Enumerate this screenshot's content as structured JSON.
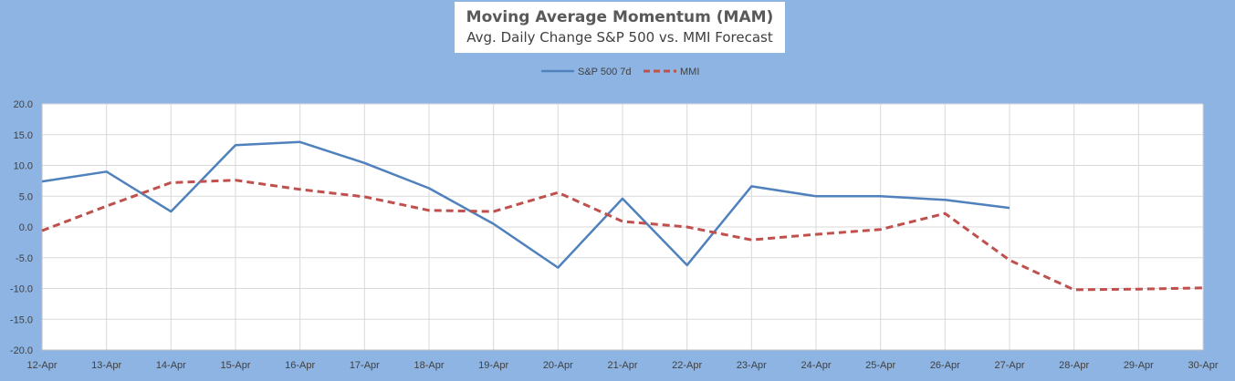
{
  "chart_data": {
    "type": "line",
    "title": "Moving Average Momentum (MAM)",
    "subtitle": "Avg. Daily Change S&P 500 vs. MMI Forecast",
    "categories": [
      "12-Apr",
      "13-Apr",
      "14-Apr",
      "15-Apr",
      "16-Apr",
      "17-Apr",
      "18-Apr",
      "19-Apr",
      "20-Apr",
      "21-Apr",
      "22-Apr",
      "23-Apr",
      "24-Apr",
      "25-Apr",
      "26-Apr",
      "27-Apr",
      "28-Apr",
      "29-Apr",
      "30-Apr"
    ],
    "series": [
      {
        "name": "S&P 500 7d",
        "color": "#4f81bd",
        "dash": "solid",
        "values": [
          7.4,
          9.0,
          2.5,
          13.3,
          13.8,
          10.4,
          6.3,
          0.5,
          -6.6,
          4.6,
          -6.2,
          6.6,
          5.0,
          5.0,
          4.4,
          3.1,
          null,
          null,
          null
        ]
      },
      {
        "name": "MMI",
        "color": "#c0504d",
        "dash": "dashed",
        "values": [
          -0.6,
          3.4,
          7.2,
          7.6,
          6.1,
          4.9,
          2.7,
          2.5,
          5.6,
          0.9,
          0.0,
          -2.1,
          -1.2,
          -0.4,
          2.2,
          -5.4,
          -10.2,
          -10.1,
          -9.9
        ]
      }
    ],
    "ylim": [
      -20,
      20
    ],
    "yticks": [
      "20.0",
      "15.0",
      "10.0",
      "5.0",
      "0.0",
      "-5.0",
      "-10.0",
      "-15.0",
      "-20.0"
    ],
    "ytick_values": [
      20,
      15,
      10,
      5,
      0,
      -5,
      -10,
      -15,
      -20
    ],
    "grid": true,
    "legend_position": "top"
  }
}
